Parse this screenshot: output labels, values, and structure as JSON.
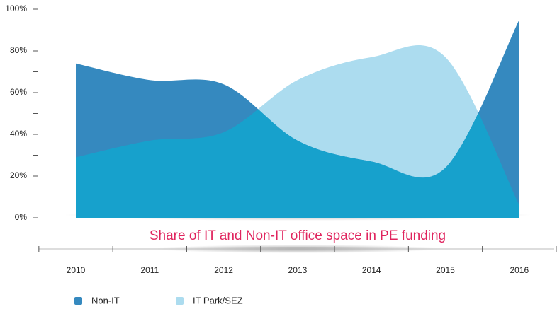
{
  "chart_data": {
    "type": "area",
    "title": "Share of IT and Non-IT office space in PE funding",
    "categories": [
      "2010",
      "2011",
      "2012",
      "2013",
      "2014",
      "2015",
      "2016"
    ],
    "series": [
      {
        "name": "Non-IT",
        "color": "#3589bf",
        "values": [
          74,
          66,
          64,
          37,
          27,
          24,
          95
        ]
      },
      {
        "name": "IT Park/SEZ",
        "color": "#acdcef",
        "values": [
          29,
          37,
          41,
          66,
          77,
          77,
          6
        ]
      }
    ],
    "overlap_color": "#17a1cc",
    "title_color": "#e0245e",
    "ylim": [
      0,
      100
    ],
    "yticks": [
      {
        "value": 0,
        "label": "0%"
      },
      {
        "value": 20,
        "label": "20%"
      },
      {
        "value": 40,
        "label": "40%"
      },
      {
        "value": 60,
        "label": "60%"
      },
      {
        "value": 80,
        "label": "80%"
      },
      {
        "value": 100,
        "label": "100%"
      }
    ],
    "minor_yticks": [
      10,
      30,
      50,
      70,
      90
    ],
    "grid": false,
    "legend": "bottom-left"
  }
}
